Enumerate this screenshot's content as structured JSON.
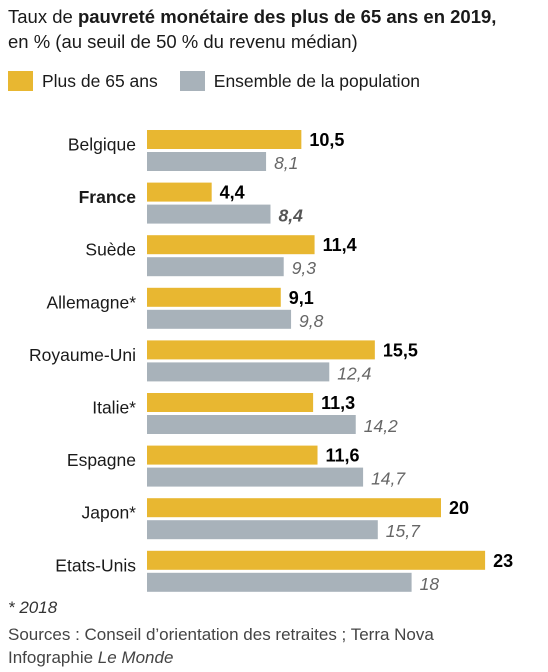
{
  "title": {
    "prefix": "Taux de ",
    "bold": "pauvreté monétaire des plus de 65 ans en 2019,",
    "line2": "en % (au seuil de 50 % du revenu médian)"
  },
  "legend": [
    {
      "label": "Plus de 65 ans",
      "color": "#e8b731"
    },
    {
      "label": "Ensemble de la population",
      "color": "#a8b2ba"
    }
  ],
  "colors": {
    "series_65": "#e8b731",
    "series_all": "#a8b2ba",
    "highlight": "#000000"
  },
  "chart_data": {
    "type": "bar",
    "orientation": "horizontal",
    "categories": [
      "Belgique",
      "France",
      "Suède",
      "Allemagne*",
      "Royaume-Uni",
      "Italie*",
      "Espagne",
      "Japon*",
      "Etats-Unis"
    ],
    "highlight_category": "France",
    "series": [
      {
        "name": "Plus de 65 ans",
        "values": [
          10.5,
          4.4,
          11.4,
          9.1,
          15.5,
          11.3,
          11.6,
          20,
          23
        ],
        "labels": [
          "10,5",
          "4,4",
          "11,4",
          "9,1",
          "15,5",
          "11,3",
          "11,6",
          "20",
          "23"
        ]
      },
      {
        "name": "Ensemble de la population",
        "values": [
          8.1,
          8.4,
          9.3,
          9.8,
          12.4,
          14.2,
          14.7,
          15.7,
          18
        ],
        "labels": [
          "8,1",
          "8,4",
          "9,3",
          "9,8",
          "12,4",
          "14,2",
          "14,7",
          "15,7",
          "18"
        ]
      }
    ],
    "xlim": [
      0,
      23
    ]
  },
  "footer": {
    "note": "* 2018",
    "sources": "Sources : Conseil d’orientation des retraites ; Terra Nova",
    "credit_prefix": "Infographie ",
    "credit_italic": "Le Monde"
  }
}
